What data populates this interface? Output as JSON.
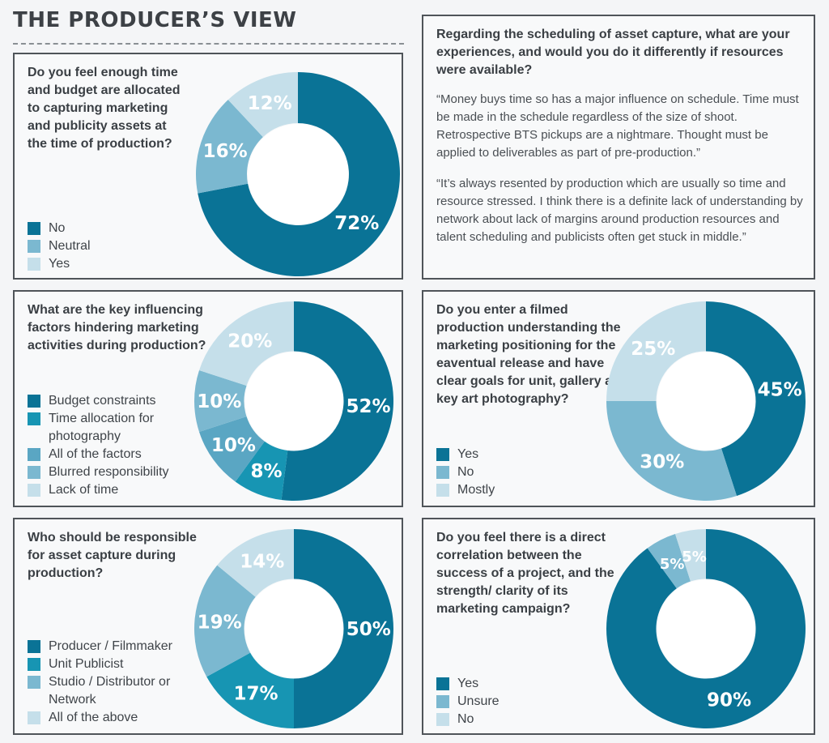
{
  "header": {
    "title": "THE PRODUCER’S VIEW"
  },
  "colors": {
    "dark": "#0a7396",
    "teal": "#1795b3",
    "mid": "#7bb8d0",
    "light": "#c5dfea",
    "label_text": "#ffffff",
    "bg": "#f4f5f7",
    "border": "#4f5459"
  },
  "quote_panel": {
    "question": "Regarding the scheduling of asset capture, what are your experiences, and would you do it differently if resources were available?",
    "quotes": [
      "“Money buys time so has a major influence on schedule. Time must be made in the schedule regardless of the size of shoot. Retrospective BTS pickups are a nightmare. Thought must be applied to deliverables as part of pre-production.”",
      "“It’s always resented by production which are usually so time and resource stressed. I think there is a definite lack of understanding by network about lack of margins around production resources and talent scheduling and publicists often get stuck in middle.”"
    ]
  },
  "chart_data": [
    {
      "type": "pie",
      "title": "Do you feel enough time and budget are allocated to capturing marketing and publicity assets at the time of production?",
      "categories": [
        "No",
        "Neutral",
        "Yes"
      ],
      "values": [
        72,
        16,
        12
      ],
      "labels": [
        "72%",
        "16%",
        "12%"
      ],
      "colors": [
        "#0a7396",
        "#7bb8d0",
        "#c5dfea"
      ],
      "legend": "bottom-left"
    },
    {
      "type": "pie",
      "title": "What are the key influencing factors hindering marketing activities during production?",
      "categories": [
        "Budget constraints",
        "Time allocation for photography",
        "All of the factors",
        "Blurred responsibility",
        "Lack of time"
      ],
      "values": [
        52,
        8,
        10,
        10,
        20
      ],
      "labels": [
        "52%",
        "8%",
        "10%",
        "10%",
        "20%"
      ],
      "colors": [
        "#0a7396",
        "#1795b3",
        "#5aa6c3",
        "#7bb8d0",
        "#c5dfea"
      ],
      "legend": "bottom-left"
    },
    {
      "type": "pie",
      "title": "Do you enter a filmed production understanding the marketing positioning for the eaventual release and have clear goals for unit, gallery and key art photography?",
      "categories": [
        "Yes",
        "No",
        "Mostly"
      ],
      "values": [
        45,
        30,
        25
      ],
      "labels": [
        "45%",
        "30%",
        "25%"
      ],
      "colors": [
        "#0a7396",
        "#7bb8d0",
        "#c5dfea"
      ],
      "legend": "bottom-left"
    },
    {
      "type": "pie",
      "title": "Who should be responsible for asset capture during production?",
      "categories": [
        "Producer / Filmmaker",
        "Unit Publicist",
        "Studio / Distributor or Network",
        "All of the above"
      ],
      "values": [
        50,
        17,
        19,
        14
      ],
      "labels": [
        "50%",
        "17%",
        "19%",
        "14%"
      ],
      "colors": [
        "#0a7396",
        "#1795b3",
        "#7bb8d0",
        "#c5dfea"
      ],
      "legend": "bottom-left"
    },
    {
      "type": "pie",
      "title": "Do you feel there is a direct correlation between the success of a project, and the strength/ clarity of its marketing campaign?",
      "categories": [
        "Yes",
        "Unsure",
        "No"
      ],
      "values": [
        90,
        5,
        5
      ],
      "labels": [
        "90%",
        "5%",
        "5%"
      ],
      "colors": [
        "#0a7396",
        "#7bb8d0",
        "#c5dfea"
      ],
      "legend": "bottom-left"
    }
  ]
}
